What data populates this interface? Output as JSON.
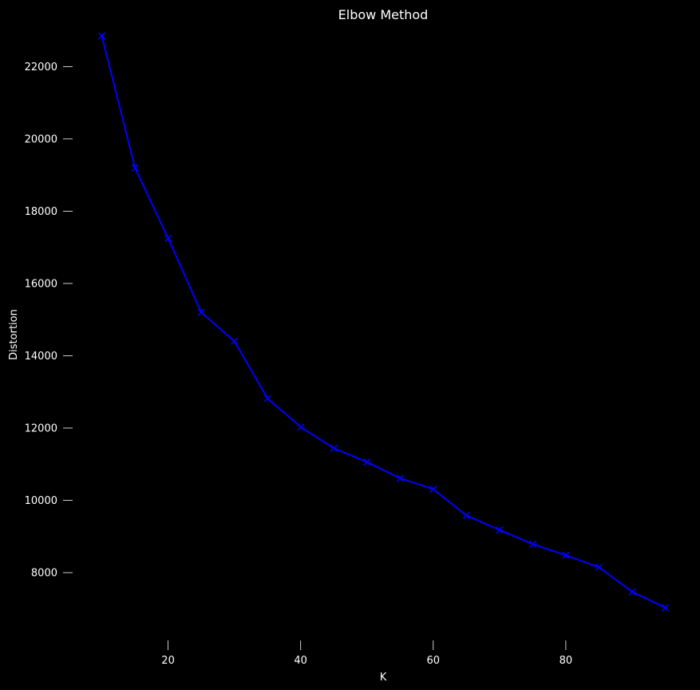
{
  "chart_data": {
    "type": "line",
    "title": "Elbow Method",
    "xlabel": "K",
    "ylabel": "Distortion",
    "xlim": [
      5,
      100
    ],
    "ylim": [
      6300,
      23400
    ],
    "xticks": [
      20,
      40,
      60,
      80
    ],
    "yticks": [
      8000,
      10000,
      12000,
      14000,
      16000,
      18000,
      20000,
      22000
    ],
    "xtick_labels": [
      "20",
      "40",
      "60",
      "80"
    ],
    "ytick_labels": [
      "8000",
      "10000",
      "12000",
      "14000",
      "16000",
      "18000",
      "20000",
      "22000"
    ],
    "grid": false,
    "marker": "x",
    "series": [
      {
        "x": [
          10,
          15,
          20,
          25,
          30,
          35,
          40,
          45,
          50,
          55,
          60,
          65,
          70,
          75,
          80,
          85,
          90,
          95
        ],
        "values": [
          22850,
          19200,
          17250,
          15200,
          14400,
          12820,
          12030,
          11440,
          11060,
          10610,
          10310,
          9580,
          9180,
          8790,
          8480,
          8150,
          7470,
          7030
        ],
        "color": "#0000ff"
      }
    ]
  },
  "colors": {
    "background": "#000000",
    "text": "#ffffff",
    "tick": "#ffffff"
  }
}
